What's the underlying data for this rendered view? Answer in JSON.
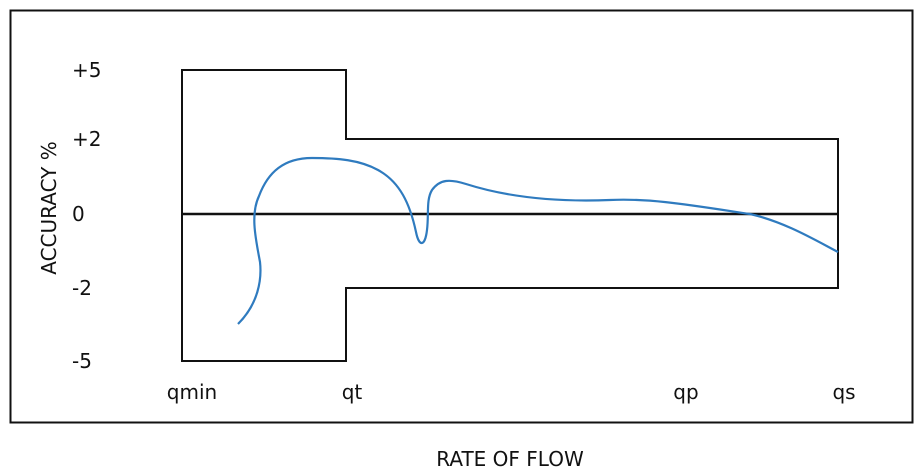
{
  "chart_data": {
    "type": "line",
    "title": "",
    "xlabel": "RATE OF FLOW",
    "ylabel": "ACCURACY %",
    "y_ticks": [
      "+5",
      "+2",
      "0",
      "-2",
      "-5"
    ],
    "x_ticks": [
      "qmin",
      "qt",
      "qp",
      "qs"
    ],
    "grid": false,
    "legend": "none",
    "error_envelope": {
      "lower_zone": {
        "from": "qmin",
        "to": "qt",
        "upper": "+5",
        "lower": "-5"
      },
      "upper_zone": {
        "from": "qt",
        "to": "qs",
        "upper": "+2",
        "lower": "-2"
      }
    },
    "reference_line": "0",
    "curve_color": "#2f7bbf",
    "line_color": "#111111"
  }
}
